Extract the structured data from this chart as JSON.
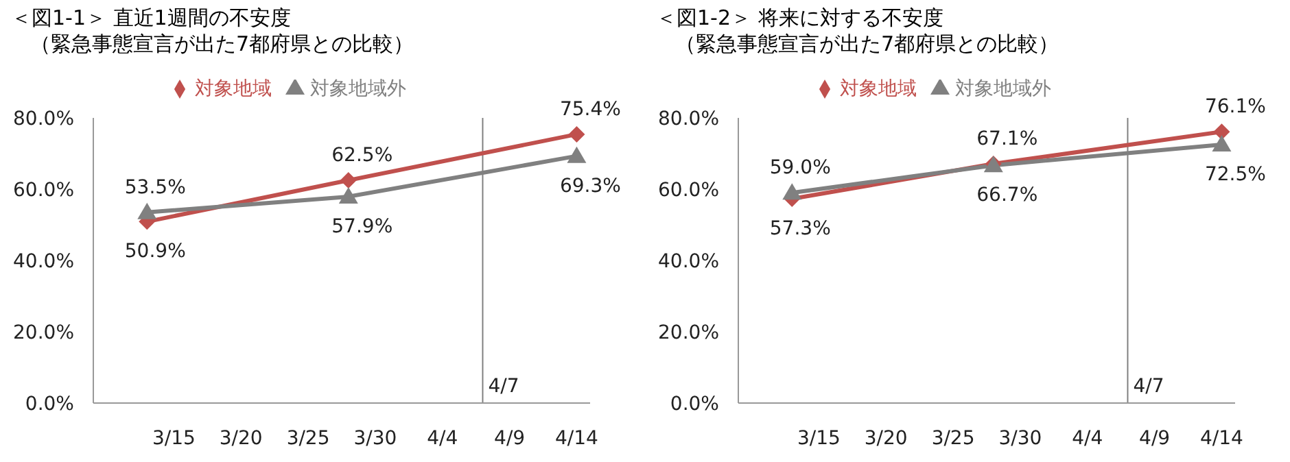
{
  "chart_data": [
    {
      "type": "line",
      "title": "＜図1-1＞ 直近1週間の不安度",
      "subtitle": "（緊急事態宣言が出た7都府県との比較）",
      "x": [
        "--03-13",
        "--03-28",
        "--04-14"
      ],
      "series": [
        {
          "name": "対象地域",
          "color": "#c0504d",
          "marker": "diamond",
          "values": [
            50.9,
            62.5,
            75.4
          ],
          "value_labels": [
            "50.9%",
            "62.5%",
            "75.4%"
          ]
        },
        {
          "name": "対象地域外",
          "color": "#808080",
          "marker": "triangle",
          "values": [
            53.5,
            57.9,
            69.3
          ],
          "value_labels": [
            "53.5%",
            "57.9%",
            "69.3%"
          ]
        }
      ],
      "ylim": [
        0,
        80
      ],
      "yticks": [
        {
          "value": 0,
          "label": "0.0%"
        },
        {
          "value": 20,
          "label": "20.0%"
        },
        {
          "value": 40,
          "label": "40.0%"
        },
        {
          "value": 60,
          "label": "60.0%"
        },
        {
          "value": 80,
          "label": "80.0%"
        }
      ],
      "xlim": [
        "--03-09",
        "--04-15"
      ],
      "xticks": [
        {
          "value": "--03-15",
          "label": "3/15"
        },
        {
          "value": "--03-20",
          "label": "3/20"
        },
        {
          "value": "--03-25",
          "label": "3/25"
        },
        {
          "value": "--03-30",
          "label": "3/30"
        },
        {
          "value": "--04-04",
          "label": "4/4"
        },
        {
          "value": "--04-09",
          "label": "4/9"
        },
        {
          "value": "--04-14",
          "label": "4/14"
        }
      ],
      "ref_lines": [
        {
          "axis": "x",
          "value": "--04-07",
          "label": "4/7",
          "color": "#808080"
        }
      ],
      "grid": false,
      "legend": "top",
      "line_style": "solid"
    },
    {
      "type": "line",
      "title": "＜図1-2＞ 将来に対する不安度",
      "subtitle": "（緊急事態宣言が出た7都府県との比較）",
      "x": [
        "--03-13",
        "--03-28",
        "--04-14"
      ],
      "series": [
        {
          "name": "対象地域",
          "color": "#c0504d",
          "marker": "diamond",
          "values": [
            57.3,
            67.1,
            76.1
          ],
          "value_labels": [
            "57.3%",
            "67.1%",
            "76.1%"
          ]
        },
        {
          "name": "対象地域外",
          "color": "#808080",
          "marker": "triangle",
          "values": [
            59.0,
            66.7,
            72.5
          ],
          "value_labels": [
            "59.0%",
            "66.7%",
            "72.5%"
          ]
        }
      ],
      "ylim": [
        0,
        80
      ],
      "yticks": [
        {
          "value": 0,
          "label": "0.0%"
        },
        {
          "value": 20,
          "label": "20.0%"
        },
        {
          "value": 40,
          "label": "40.0%"
        },
        {
          "value": 60,
          "label": "60.0%"
        },
        {
          "value": 80,
          "label": "80.0%"
        }
      ],
      "xlim": [
        "--03-09",
        "--04-15"
      ],
      "xticks": [
        {
          "value": "--03-15",
          "label": "3/15"
        },
        {
          "value": "--03-20",
          "label": "3/20"
        },
        {
          "value": "--03-25",
          "label": "3/25"
        },
        {
          "value": "--03-30",
          "label": "3/30"
        },
        {
          "value": "--04-04",
          "label": "4/4"
        },
        {
          "value": "--04-09",
          "label": "4/9"
        },
        {
          "value": "--04-14",
          "label": "4/14"
        }
      ],
      "ref_lines": [
        {
          "axis": "x",
          "value": "--04-07",
          "label": "4/7",
          "color": "#808080"
        }
      ],
      "grid": false,
      "legend": "top",
      "line_style": "solid"
    }
  ]
}
